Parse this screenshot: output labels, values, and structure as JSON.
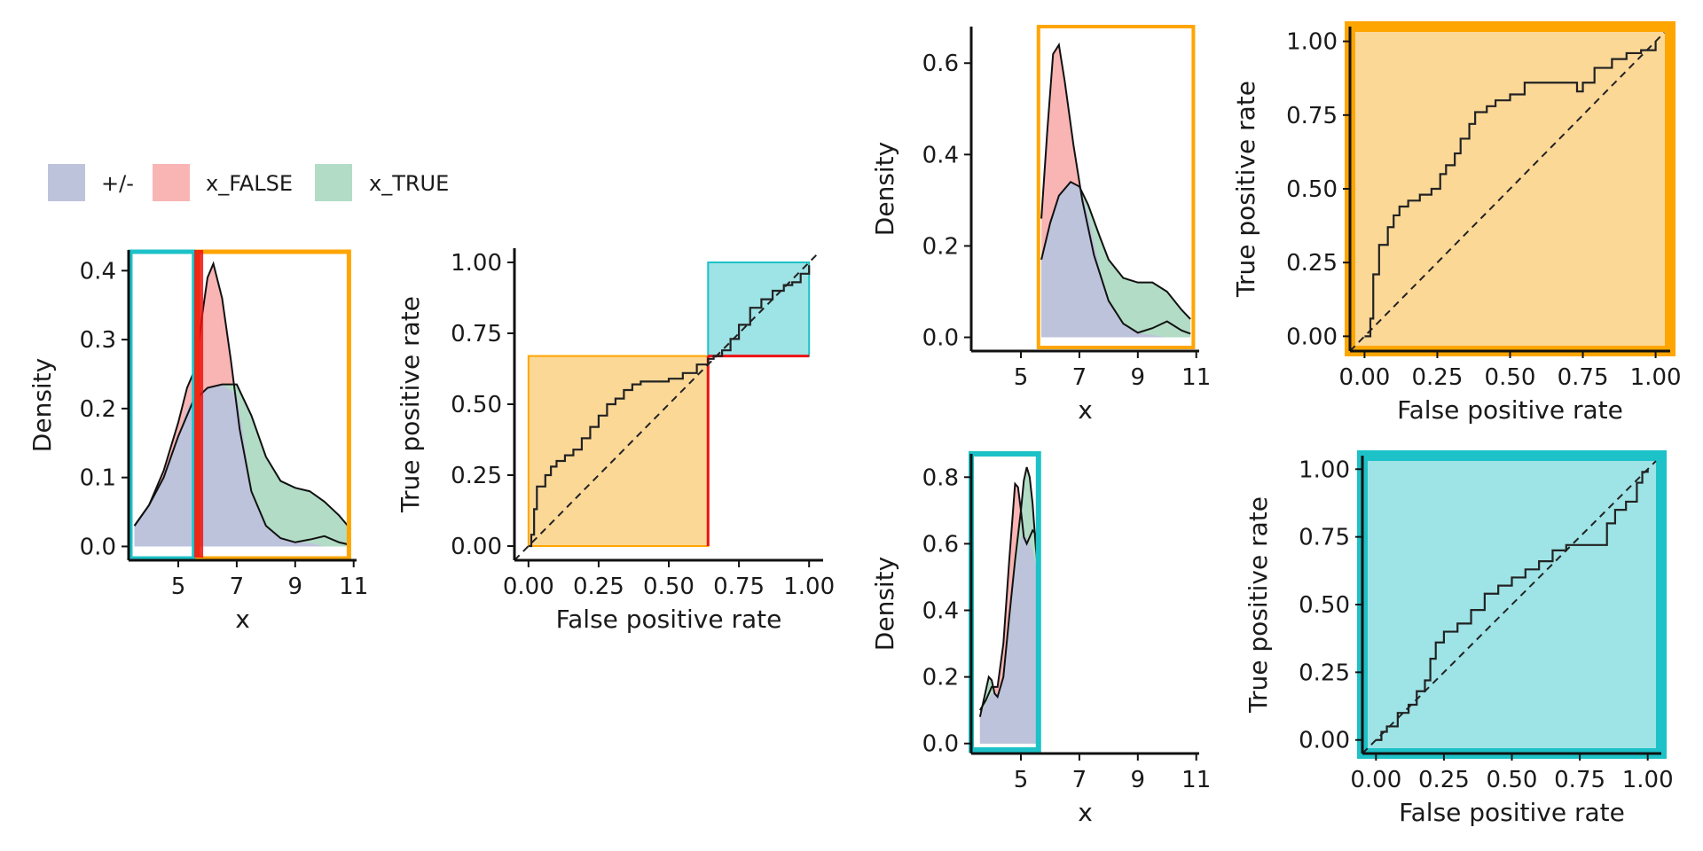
{
  "legend": {
    "items": [
      {
        "label": "+/-",
        "color": "#BEC3DC"
      },
      {
        "label": "x_FALSE",
        "color": "#F9B4B4"
      },
      {
        "label": "x_TRUE",
        "color": "#B2DCC6"
      }
    ]
  },
  "colors": {
    "plus_minus_fill": "#BEC3DC",
    "false_fill": "#F9B4B4",
    "true_fill": "#B2DCC6",
    "orange": "#FFA500",
    "orange_fill": "#FCD897",
    "cyan": "#1DC2C8",
    "cyan_fill": "#9EE3E6",
    "threshold_red": "#EE1111",
    "curve": "#111111"
  },
  "chart_data": [
    {
      "id": "density_full",
      "type": "area",
      "xlabel": "x",
      "ylabel": "Density",
      "xticks": [
        5,
        7,
        9,
        11
      ],
      "yticks": [
        "0.0",
        "0.1",
        "0.2",
        "0.3",
        "0.4"
      ],
      "xlim": [
        3.3,
        11.1
      ],
      "ylim": [
        -0.02,
        0.43
      ],
      "threshold_x": 5.7,
      "regions": [
        {
          "name": "left",
          "x_range": [
            3.3,
            5.6
          ],
          "color": "cyan"
        },
        {
          "name": "right",
          "x_range": [
            5.6,
            10.9
          ],
          "color": "orange"
        }
      ],
      "series": [
        {
          "name": "x_FALSE",
          "x": [
            3.5,
            4.0,
            4.5,
            5.0,
            5.3,
            5.6,
            5.8,
            6.0,
            6.2,
            6.5,
            6.8,
            7.1,
            7.5,
            8.0,
            8.5,
            9.0,
            9.5,
            10.0,
            10.5,
            10.9
          ],
          "y": [
            0.03,
            0.06,
            0.11,
            0.18,
            0.23,
            0.26,
            0.33,
            0.39,
            0.41,
            0.36,
            0.27,
            0.17,
            0.08,
            0.03,
            0.012,
            0.006,
            0.01,
            0.015,
            0.006,
            0.002
          ]
        },
        {
          "name": "x_TRUE",
          "x": [
            3.5,
            4.0,
            4.5,
            5.0,
            5.5,
            6.0,
            6.5,
            7.0,
            7.5,
            8.0,
            8.5,
            9.0,
            9.5,
            10.0,
            10.5,
            10.9
          ],
          "y": [
            0.03,
            0.06,
            0.1,
            0.16,
            0.21,
            0.23,
            0.235,
            0.235,
            0.19,
            0.13,
            0.095,
            0.085,
            0.08,
            0.065,
            0.045,
            0.025
          ]
        },
        {
          "name": "+/-",
          "x": [
            3.5,
            4.0,
            4.5,
            5.0,
            5.3,
            5.6,
            6.0,
            6.5,
            7.0,
            7.2,
            7.5,
            8.0,
            8.5,
            9.0,
            9.5,
            10.0,
            10.9
          ],
          "y": [
            0.03,
            0.06,
            0.1,
            0.16,
            0.2,
            0.22,
            0.23,
            0.235,
            0.22,
            0.17,
            0.08,
            0.03,
            0.012,
            0.006,
            0.005,
            0.0,
            0.0
          ]
        }
      ]
    },
    {
      "id": "roc_full",
      "type": "line",
      "xlabel": "False positive rate",
      "ylabel": "True positive rate",
      "xticks": [
        "0.00",
        "0.25",
        "0.50",
        "0.75",
        "1.00"
      ],
      "yticks": [
        "0.00",
        "0.25",
        "0.50",
        "0.75",
        "1.00"
      ],
      "xlim": [
        -0.05,
        1.05
      ],
      "ylim": [
        -0.05,
        1.05
      ],
      "threshold_point": [
        0.64,
        0.67
      ],
      "series": [
        {
          "name": "ROC",
          "x": [
            0.0,
            0.01,
            0.02,
            0.03,
            0.04,
            0.06,
            0.08,
            0.1,
            0.13,
            0.16,
            0.19,
            0.22,
            0.25,
            0.28,
            0.31,
            0.34,
            0.37,
            0.4,
            0.45,
            0.5,
            0.55,
            0.6,
            0.64,
            0.66,
            0.69,
            0.72,
            0.75,
            0.79,
            0.83,
            0.87,
            0.91,
            0.94,
            0.97,
            1.0
          ],
          "y": [
            0.0,
            0.04,
            0.13,
            0.21,
            0.21,
            0.25,
            0.28,
            0.3,
            0.32,
            0.34,
            0.38,
            0.42,
            0.46,
            0.5,
            0.52,
            0.55,
            0.57,
            0.58,
            0.58,
            0.59,
            0.61,
            0.64,
            0.66,
            0.67,
            0.69,
            0.73,
            0.78,
            0.84,
            0.87,
            0.9,
            0.92,
            0.93,
            0.96,
            0.99
          ]
        }
      ]
    },
    {
      "id": "density_orange",
      "type": "area",
      "xlabel": "x",
      "ylabel": "Density",
      "xticks": [
        5,
        7,
        9,
        11
      ],
      "yticks": [
        "0.0",
        "0.2",
        "0.4",
        "0.6"
      ],
      "xlim": [
        3.3,
        11.1
      ],
      "ylim": [
        -0.03,
        0.68
      ],
      "region": {
        "x_range": [
          5.6,
          10.9
        ],
        "color": "orange"
      },
      "series": [
        {
          "name": "x_FALSE",
          "x": [
            5.7,
            5.9,
            6.1,
            6.3,
            6.5,
            6.8,
            7.1,
            7.5,
            8.0,
            8.5,
            9.0,
            9.5,
            10.0,
            10.5,
            10.8
          ],
          "y": [
            0.26,
            0.45,
            0.62,
            0.64,
            0.56,
            0.42,
            0.3,
            0.18,
            0.08,
            0.03,
            0.01,
            0.02,
            0.035,
            0.015,
            0.008
          ]
        },
        {
          "name": "x_TRUE",
          "x": [
            5.7,
            6.0,
            6.3,
            6.7,
            7.0,
            7.3,
            7.7,
            8.0,
            8.5,
            9.0,
            9.5,
            10.0,
            10.5,
            10.8
          ],
          "y": [
            0.17,
            0.25,
            0.31,
            0.34,
            0.33,
            0.29,
            0.22,
            0.17,
            0.13,
            0.12,
            0.12,
            0.1,
            0.06,
            0.04
          ]
        },
        {
          "name": "+/-",
          "x": [
            5.7,
            6.0,
            6.3,
            6.7,
            7.0,
            7.3,
            7.7,
            8.0,
            8.5,
            9.0,
            9.5,
            10.0,
            10.8
          ],
          "y": [
            0.17,
            0.25,
            0.31,
            0.34,
            0.33,
            0.27,
            0.15,
            0.08,
            0.03,
            0.01,
            0.005,
            0.0,
            0.0
          ]
        }
      ]
    },
    {
      "id": "roc_orange",
      "type": "line",
      "xlabel": "False positive rate",
      "ylabel": "True positive rate",
      "xticks": [
        "0.00",
        "0.25",
        "0.50",
        "0.75",
        "1.00"
      ],
      "yticks": [
        "0.00",
        "0.25",
        "0.50",
        "0.75",
        "1.00"
      ],
      "xlim": [
        -0.05,
        1.05
      ],
      "ylim": [
        -0.05,
        1.05
      ],
      "series": [
        {
          "name": "ROC",
          "x": [
            0.0,
            0.02,
            0.03,
            0.05,
            0.08,
            0.1,
            0.12,
            0.15,
            0.19,
            0.23,
            0.26,
            0.28,
            0.31,
            0.33,
            0.36,
            0.38,
            0.42,
            0.45,
            0.5,
            0.55,
            0.6,
            0.66,
            0.7,
            0.73,
            0.75,
            0.79,
            0.85,
            0.9,
            0.95,
            1.0
          ],
          "y": [
            0.0,
            0.06,
            0.21,
            0.31,
            0.37,
            0.41,
            0.44,
            0.46,
            0.48,
            0.5,
            0.55,
            0.58,
            0.62,
            0.67,
            0.72,
            0.76,
            0.78,
            0.8,
            0.82,
            0.86,
            0.86,
            0.86,
            0.86,
            0.83,
            0.86,
            0.91,
            0.94,
            0.96,
            0.97,
            1.0
          ]
        }
      ]
    },
    {
      "id": "density_cyan",
      "type": "area",
      "xlabel": "x",
      "ylabel": "Density",
      "xticks": [
        5,
        7,
        9,
        11
      ],
      "yticks": [
        "0.0",
        "0.2",
        "0.4",
        "0.6",
        "0.8"
      ],
      "xlim": [
        3.3,
        11.1
      ],
      "ylim": [
        -0.03,
        0.87
      ],
      "region": {
        "x_range": [
          3.3,
          5.6
        ],
        "color": "cyan"
      },
      "series": [
        {
          "name": "x_FALSE",
          "x": [
            3.6,
            3.8,
            4.0,
            4.2,
            4.4,
            4.6,
            4.8,
            4.9,
            5.0,
            5.1,
            5.2,
            5.3,
            5.4,
            5.5,
            5.6
          ],
          "y": [
            0.1,
            0.13,
            0.17,
            0.17,
            0.3,
            0.55,
            0.78,
            0.77,
            0.7,
            0.62,
            0.6,
            0.62,
            0.64,
            0.63,
            0.6
          ]
        },
        {
          "name": "x_TRUE",
          "x": [
            3.6,
            3.8,
            3.9,
            4.0,
            4.1,
            4.2,
            4.4,
            4.6,
            4.8,
            5.0,
            5.1,
            5.2,
            5.3,
            5.4,
            5.5,
            5.6
          ],
          "y": [
            0.08,
            0.16,
            0.2,
            0.19,
            0.15,
            0.14,
            0.2,
            0.38,
            0.55,
            0.7,
            0.79,
            0.83,
            0.8,
            0.72,
            0.6,
            0.5
          ]
        },
        {
          "name": "+/-",
          "x": [
            3.6,
            3.8,
            4.0,
            4.2,
            4.4,
            4.6,
            4.8,
            5.0,
            5.2,
            5.4,
            5.6
          ],
          "y": [
            0.08,
            0.12,
            0.15,
            0.15,
            0.2,
            0.35,
            0.52,
            0.62,
            0.62,
            0.58,
            0.5
          ]
        }
      ]
    },
    {
      "id": "roc_cyan",
      "type": "line",
      "xlabel": "False positive rate",
      "ylabel": "True positive rate",
      "xticks": [
        "0.00",
        "0.25",
        "0.50",
        "0.75",
        "1.00"
      ],
      "yticks": [
        "0.00",
        "0.25",
        "0.50",
        "0.75",
        "1.00"
      ],
      "xlim": [
        -0.05,
        1.05
      ],
      "ylim": [
        -0.05,
        1.05
      ],
      "series": [
        {
          "name": "ROC",
          "x": [
            0.0,
            0.02,
            0.04,
            0.08,
            0.12,
            0.15,
            0.18,
            0.2,
            0.22,
            0.25,
            0.3,
            0.35,
            0.4,
            0.45,
            0.5,
            0.55,
            0.6,
            0.65,
            0.7,
            0.75,
            0.8,
            0.85,
            0.88,
            0.92,
            0.96,
            0.98,
            1.0
          ],
          "y": [
            0.0,
            0.03,
            0.05,
            0.1,
            0.13,
            0.18,
            0.22,
            0.3,
            0.36,
            0.4,
            0.43,
            0.48,
            0.54,
            0.57,
            0.6,
            0.63,
            0.66,
            0.7,
            0.72,
            0.72,
            0.72,
            0.8,
            0.85,
            0.88,
            0.95,
            0.99,
            1.0
          ]
        }
      ]
    }
  ]
}
